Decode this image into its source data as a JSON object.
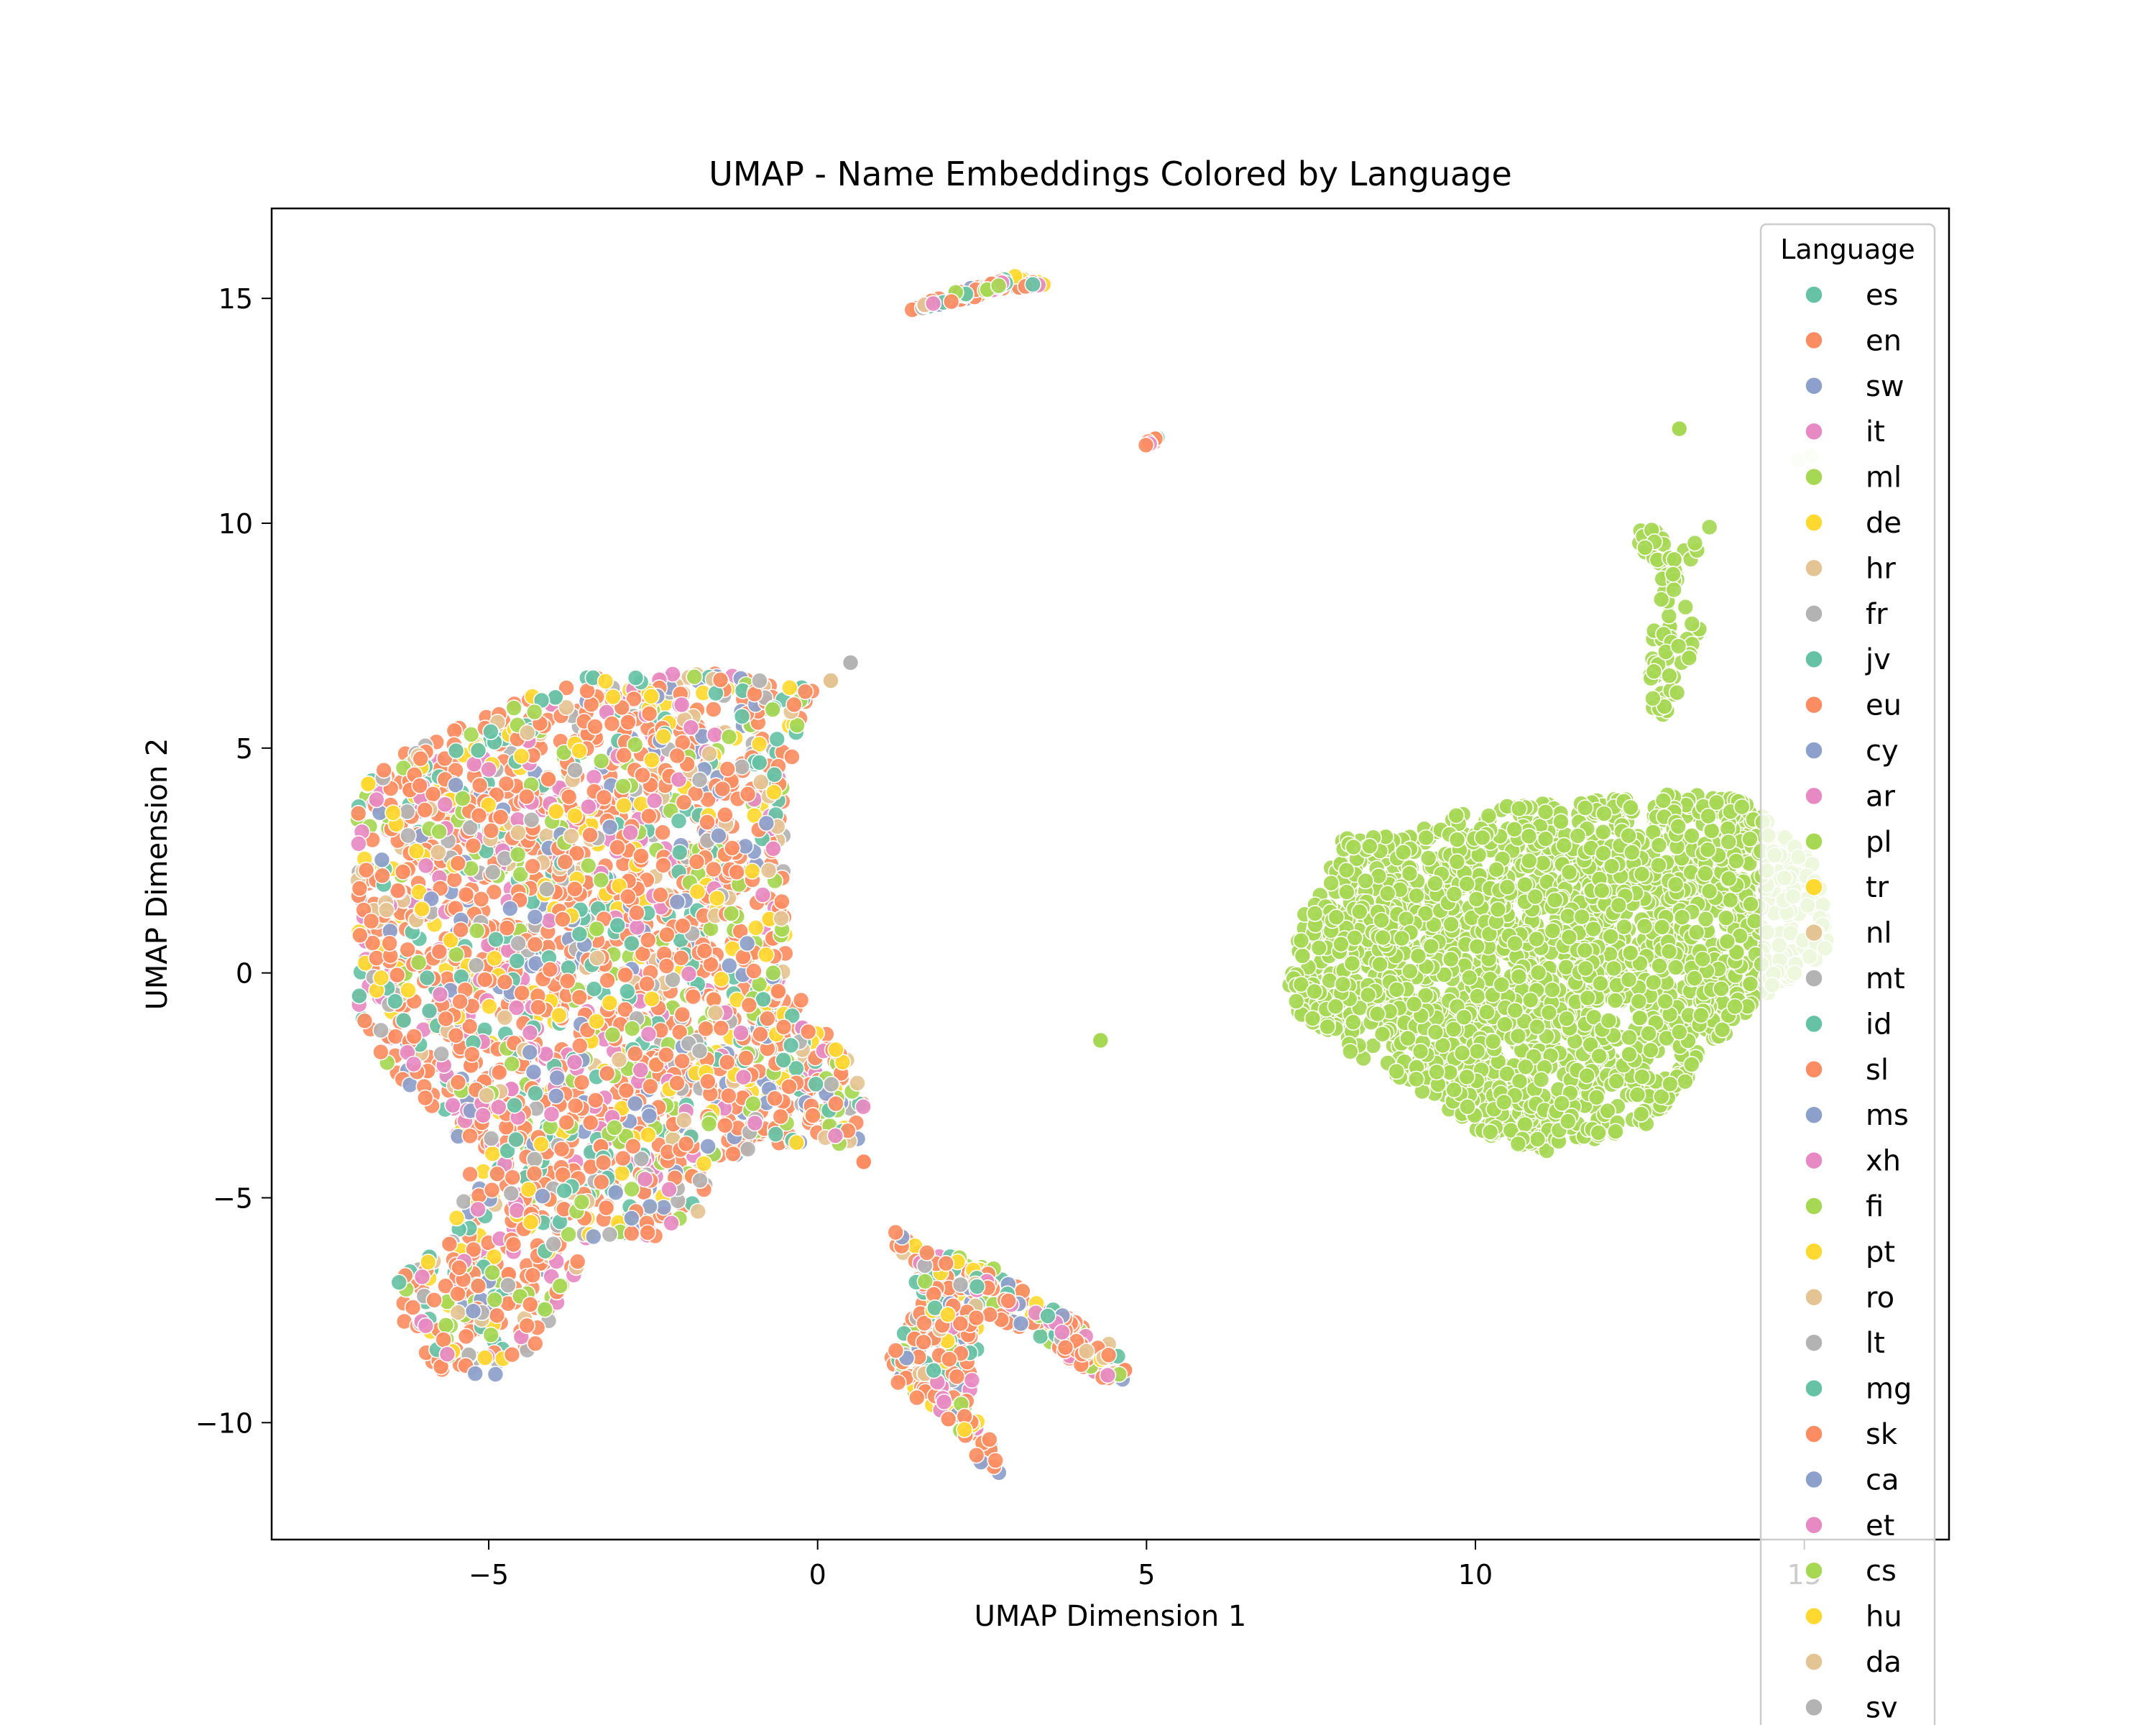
{
  "chart_data": {
    "type": "scatter",
    "title": "UMAP - Name Embeddings Colored by Language",
    "xlabel": "UMAP Dimension 1",
    "ylabel": "UMAP Dimension 2",
    "xlim": [
      -8.3,
      17.2
    ],
    "ylim": [
      -12.6,
      17.0
    ],
    "x_ticks": [
      {
        "value": -5,
        "label": "−5"
      },
      {
        "value": 0,
        "label": "0"
      },
      {
        "value": 5,
        "label": "5"
      },
      {
        "value": 10,
        "label": "10"
      },
      {
        "value": 15,
        "label": "15"
      }
    ],
    "y_ticks": [
      {
        "value": -10,
        "label": "−10"
      },
      {
        "value": -5,
        "label": "−5"
      },
      {
        "value": 0,
        "label": "0"
      },
      {
        "value": 5,
        "label": "5"
      },
      {
        "value": 10,
        "label": "10"
      },
      {
        "value": 15,
        "label": "15"
      }
    ],
    "grid": false,
    "legend": {
      "title": "Language",
      "placement": "upper-right, extends below the axes",
      "entries": [
        {
          "label": "es",
          "color": "#66c2a5"
        },
        {
          "label": "en",
          "color": "#fc8d62"
        },
        {
          "label": "sw",
          "color": "#8da0cb"
        },
        {
          "label": "it",
          "color": "#e78ac3"
        },
        {
          "label": "ml",
          "color": "#a6d854"
        },
        {
          "label": "de",
          "color": "#ffd92f"
        },
        {
          "label": "hr",
          "color": "#e5c494"
        },
        {
          "label": "fr",
          "color": "#b3b3b3"
        },
        {
          "label": "jv",
          "color": "#66c2a5"
        },
        {
          "label": "eu",
          "color": "#fc8d62"
        },
        {
          "label": "cy",
          "color": "#8da0cb"
        },
        {
          "label": "ar",
          "color": "#e78ac3"
        },
        {
          "label": "pl",
          "color": "#a6d854"
        },
        {
          "label": "tr",
          "color": "#ffd92f"
        },
        {
          "label": "nl",
          "color": "#e5c494"
        },
        {
          "label": "mt",
          "color": "#b3b3b3"
        },
        {
          "label": "id",
          "color": "#66c2a5"
        },
        {
          "label": "sl",
          "color": "#fc8d62"
        },
        {
          "label": "ms",
          "color": "#8da0cb"
        },
        {
          "label": "xh",
          "color": "#e78ac3"
        },
        {
          "label": "fi",
          "color": "#a6d854"
        },
        {
          "label": "pt",
          "color": "#ffd92f"
        },
        {
          "label": "ro",
          "color": "#e5c494"
        },
        {
          "label": "lt",
          "color": "#b3b3b3"
        },
        {
          "label": "mg",
          "color": "#66c2a5"
        },
        {
          "label": "sk",
          "color": "#fc8d62"
        },
        {
          "label": "ca",
          "color": "#8da0cb"
        },
        {
          "label": "et",
          "color": "#e78ac3"
        },
        {
          "label": "cs",
          "color": "#a6d854"
        },
        {
          "label": "hu",
          "color": "#ffd92f"
        },
        {
          "label": "da",
          "color": "#e5c494"
        },
        {
          "label": "sv",
          "color": "#b3b3b3"
        }
      ]
    },
    "clusters": [
      {
        "name": "main-mixed-cluster",
        "mixed": true,
        "polygon": [
          [
            -7.0,
            4.0
          ],
          [
            -6.2,
            5.0
          ],
          [
            -5.0,
            5.8
          ],
          [
            -3.5,
            6.6
          ],
          [
            -2.0,
            6.7
          ],
          [
            -0.8,
            6.6
          ],
          [
            0.0,
            6.3
          ],
          [
            -0.3,
            5.5
          ],
          [
            -0.5,
            3.5
          ],
          [
            -0.5,
            1.0
          ],
          [
            -0.3,
            -0.5
          ],
          [
            0.3,
            -1.5
          ],
          [
            0.8,
            -3.0
          ],
          [
            0.6,
            -3.8
          ],
          [
            -0.5,
            -3.8
          ],
          [
            -1.6,
            -4.2
          ],
          [
            -1.7,
            -5.4
          ],
          [
            -2.5,
            -5.9
          ],
          [
            -3.5,
            -6.2
          ],
          [
            -3.8,
            -7.0
          ],
          [
            -4.3,
            -8.5
          ],
          [
            -5.0,
            -9.0
          ],
          [
            -5.8,
            -8.8
          ],
          [
            -6.3,
            -8.0
          ],
          [
            -6.4,
            -6.8
          ],
          [
            -5.5,
            -5.5
          ],
          [
            -5.2,
            -4.0
          ],
          [
            -5.8,
            -3.2
          ],
          [
            -6.5,
            -2.2
          ],
          [
            -7.0,
            -0.8
          ],
          [
            -7.0,
            2.0
          ]
        ],
        "x": [
          -7.0,
          0.8
        ],
        "y": [
          -9.0,
          6.7
        ],
        "count": 2600
      },
      {
        "name": "lower-fork-cluster",
        "mixed": true,
        "polygon": [
          [
            1.0,
            -5.5
          ],
          [
            1.6,
            -6.2
          ],
          [
            2.5,
            -6.4
          ],
          [
            3.2,
            -7.1
          ],
          [
            4.6,
            -8.4
          ],
          [
            4.9,
            -9.0
          ],
          [
            4.3,
            -9.1
          ],
          [
            3.3,
            -8.0
          ],
          [
            2.5,
            -7.6
          ],
          [
            2.3,
            -9.7
          ],
          [
            2.6,
            -10.3
          ],
          [
            2.8,
            -11.2
          ],
          [
            2.4,
            -10.8
          ],
          [
            1.9,
            -9.8
          ],
          [
            1.2,
            -9.2
          ],
          [
            1.1,
            -8.5
          ],
          [
            1.6,
            -7.3
          ]
        ],
        "x": [
          1.0,
          4.9
        ],
        "y": [
          -11.2,
          -5.5
        ],
        "count": 420
      },
      {
        "name": "top-arc-cluster",
        "mixed": true,
        "polygon": [
          [
            1.3,
            14.7
          ],
          [
            2.0,
            15.1
          ],
          [
            3.0,
            15.5
          ],
          [
            3.5,
            15.3
          ],
          [
            2.9,
            15.2
          ],
          [
            2.0,
            14.9
          ]
        ],
        "x": [
          1.3,
          3.5
        ],
        "y": [
          14.7,
          15.5
        ],
        "count": 80
      },
      {
        "name": "small-island-cluster",
        "mixed": true,
        "polygon": [
          [
            4.9,
            11.7
          ],
          [
            5.2,
            12.0
          ],
          [
            5.2,
            11.8
          ]
        ],
        "x": [
          4.9,
          5.2
        ],
        "y": [
          11.7,
          12.0
        ],
        "count": 12
      },
      {
        "name": "ml-main-cluster",
        "mixed": false,
        "color": "#a6d854",
        "polygon": [
          [
            7.0,
            -0.5
          ],
          [
            7.4,
            1.5
          ],
          [
            8.0,
            3.0
          ],
          [
            9.0,
            3.1
          ],
          [
            10.0,
            3.7
          ],
          [
            11.5,
            3.8
          ],
          [
            13.0,
            4.0
          ],
          [
            14.0,
            3.9
          ],
          [
            15.2,
            2.5
          ],
          [
            15.4,
            0.5
          ],
          [
            14.3,
            -0.6
          ],
          [
            13.5,
            -1.8
          ],
          [
            12.7,
            -3.4
          ],
          [
            11.5,
            -3.8
          ],
          [
            11.0,
            -4.0
          ],
          [
            10.0,
            -3.5
          ],
          [
            9.0,
            -2.5
          ],
          [
            7.8,
            -1.5
          ]
        ],
        "x": [
          7.0,
          15.4
        ],
        "y": [
          -4.0,
          4.0
        ],
        "count": 2200
      },
      {
        "name": "ml-branch-cluster",
        "mixed": false,
        "color": "#a6d854",
        "polygon": [
          [
            12.6,
            6.0
          ],
          [
            12.8,
            9.0
          ],
          [
            12.3,
            9.8
          ],
          [
            12.7,
            10.0
          ],
          [
            13.1,
            9.3
          ],
          [
            13.8,
            10.4
          ],
          [
            13.2,
            9.0
          ],
          [
            13.2,
            7.9
          ],
          [
            13.5,
            7.9
          ],
          [
            13.1,
            6.2
          ],
          [
            12.9,
            5.6
          ]
        ],
        "x": [
          12.3,
          13.8
        ],
        "y": [
          5.6,
          10.4
        ],
        "count": 90
      }
    ],
    "outliers": [
      {
        "x": 4.3,
        "y": -1.5,
        "color": "#a6d854"
      },
      {
        "x": 13.1,
        "y": 12.1,
        "color": "#a6d854"
      },
      {
        "x": 0.5,
        "y": 6.9,
        "color": "#b3b3b3"
      },
      {
        "x": 0.2,
        "y": 6.5,
        "color": "#e5c494"
      },
      {
        "x": 0.7,
        "y": -4.2,
        "color": "#fc8d62"
      },
      {
        "x": 14.9,
        "y": 11.4,
        "color": "#e8f3d6"
      },
      {
        "x": 15.1,
        "y": 11.5,
        "color": "#e8f3d6"
      }
    ]
  }
}
